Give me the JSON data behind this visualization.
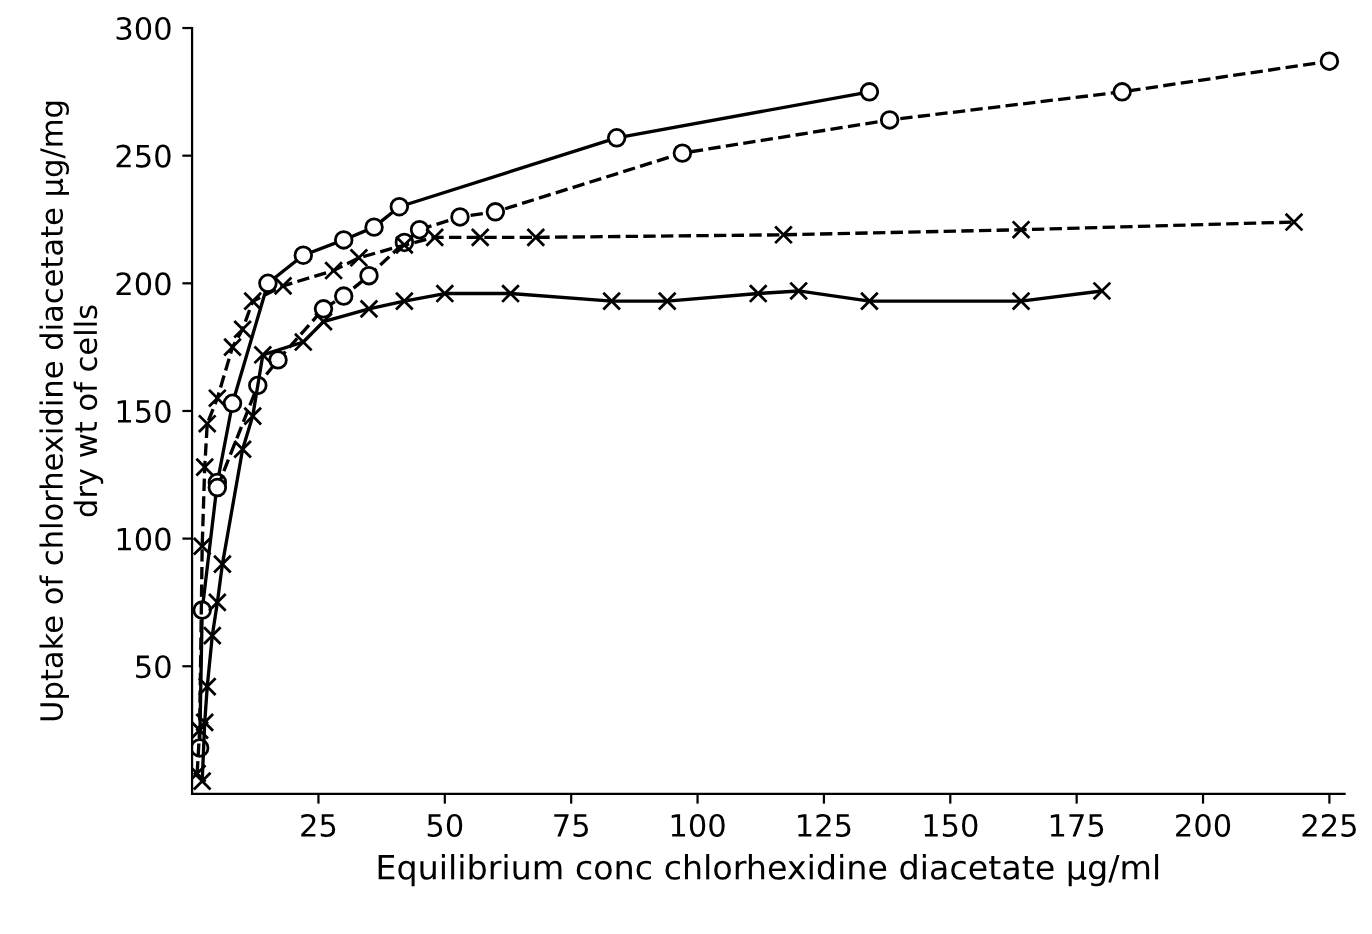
{
  "chart_data": {
    "type": "line",
    "xlabel": "Equilibrium conc chlorhexidine diacetate μg/ml",
    "ylabel": "Uptake of chlorhexidine diacetate μg/mg\ndry wt of cells",
    "xlim": [
      0,
      228
    ],
    "ylim": [
      0,
      300
    ],
    "xticks": [
      25,
      50,
      75,
      100,
      125,
      150,
      175,
      200,
      225
    ],
    "yticks": [
      50,
      100,
      150,
      200,
      250,
      300
    ],
    "grid": false,
    "series": [
      {
        "color": "#000000",
        "marker": "circle",
        "line_style": "solid",
        "x": [
          1.5,
          2,
          5,
          8,
          15,
          22,
          30,
          36,
          41,
          84,
          134
        ],
        "values": [
          18,
          72,
          122,
          153,
          200,
          211,
          217,
          222,
          230,
          257,
          275
        ]
      },
      {
        "color": "#000000",
        "marker": "circle",
        "line_style": "dashed",
        "x": [
          5,
          13,
          17,
          26,
          30,
          35,
          42,
          45,
          53,
          60,
          97,
          138,
          184,
          225
        ],
        "values": [
          120,
          160,
          170,
          190,
          195,
          203,
          216,
          221,
          226,
          228,
          251,
          264,
          275,
          287
        ]
      },
      {
        "color": "#000000",
        "marker": "cross",
        "line_style": "solid",
        "x": [
          2,
          2.5,
          3,
          4,
          5,
          6,
          10,
          12,
          14,
          22,
          26,
          35,
          42,
          50,
          63,
          83,
          94,
          112,
          120,
          134,
          164,
          180
        ],
        "values": [
          5,
          28,
          42,
          62,
          75,
          90,
          135,
          148,
          172,
          177,
          185,
          190,
          193,
          196,
          196,
          193,
          193,
          196,
          197,
          193,
          193,
          197
        ]
      },
      {
        "color": "#000000",
        "marker": "cross",
        "line_style": "dashed",
        "x": [
          1,
          1.5,
          2,
          2.5,
          3,
          5,
          8,
          10,
          12,
          18,
          28,
          33,
          42,
          48,
          57,
          68,
          117,
          164,
          218
        ],
        "values": [
          8,
          25,
          97,
          128,
          145,
          155,
          175,
          182,
          193,
          199,
          205,
          210,
          215,
          218,
          218,
          218,
          219,
          221,
          224
        ]
      }
    ]
  }
}
